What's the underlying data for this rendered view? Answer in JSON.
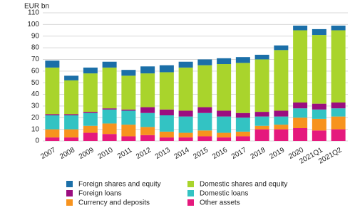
{
  "chart_data": {
    "type": "stacked_bar",
    "y_label": "EUR bn",
    "categories": [
      "2007",
      "2008",
      "2009",
      "2010",
      "2011",
      "2012",
      "2013",
      "2014",
      "2015",
      "2016",
      "2017",
      "2018",
      "2019",
      "2020",
      "2021Q1",
      "2021Q2"
    ],
    "series": [
      {
        "name": "Other assets",
        "color": "#e5197d",
        "values": [
          3,
          3,
          7,
          6,
          4,
          5,
          3,
          3,
          4,
          3,
          4,
          10,
          10,
          11,
          9,
          10
        ]
      },
      {
        "name": "Currency and deposits",
        "color": "#f7931e",
        "values": [
          7,
          7,
          6,
          9,
          10,
          7,
          5,
          4,
          5,
          4,
          4,
          3,
          4,
          9,
          10,
          11
        ]
      },
      {
        "name": "Domestic loans",
        "color": "#33c3c3",
        "values": [
          12,
          12,
          11,
          12,
          12,
          12,
          14,
          14,
          15,
          14,
          12,
          8,
          7,
          8,
          8,
          7
        ]
      },
      {
        "name": "Foreign loans",
        "color": "#9b0d7f",
        "values": [
          1,
          1,
          1,
          1,
          1,
          5,
          5,
          5,
          5,
          5,
          4,
          4,
          5,
          5,
          5,
          5
        ]
      },
      {
        "name": "Domestic shares and equity",
        "color": "#a9d42c",
        "values": [
          40,
          29,
          33,
          35,
          29,
          29,
          32,
          37,
          36,
          40,
          43,
          45,
          52,
          62,
          59,
          62
        ]
      },
      {
        "name": "Foreign shares and equity",
        "color": "#1b6fa8",
        "values": [
          6,
          4,
          5,
          5,
          5,
          6,
          6,
          5,
          5,
          5,
          5,
          4,
          4,
          4,
          5,
          4
        ]
      }
    ],
    "ylim": [
      0,
      110
    ],
    "yticks": [
      0,
      10,
      20,
      30,
      40,
      50,
      60,
      70,
      80,
      90,
      100,
      110
    ],
    "grid": true
  }
}
